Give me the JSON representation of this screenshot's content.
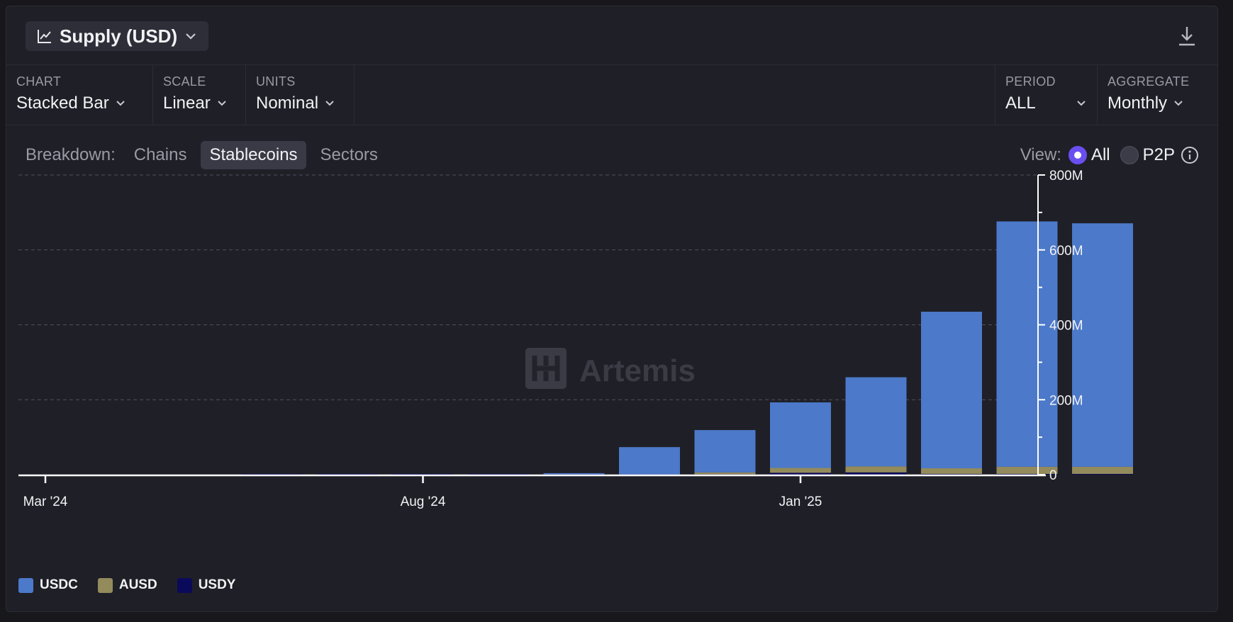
{
  "header": {
    "title": "Supply (USD)",
    "chart_icon": "line-chart-icon",
    "download_icon": "download-icon"
  },
  "controls": [
    {
      "label": "CHART",
      "value": "Stacked Bar"
    },
    {
      "label": "SCALE",
      "value": "Linear"
    },
    {
      "label": "UNITS",
      "value": "Nominal"
    },
    {
      "label": "PERIOD",
      "value": "ALL"
    },
    {
      "label": "AGGREGATE",
      "value": "Monthly"
    }
  ],
  "breakdown": {
    "label": "Breakdown:",
    "items": [
      "Chains",
      "Stablecoins",
      "Sectors"
    ],
    "active": "Stablecoins"
  },
  "view": {
    "label": "View:",
    "options": [
      "All",
      "P2P"
    ],
    "selected": "All"
  },
  "watermark": "Artemis",
  "colors": {
    "USDC": "#4c79c9",
    "AUSD": "#938b5c",
    "USDY": "#0b0a5a",
    "accent": "#6a4ff0"
  },
  "chart_data": {
    "type": "bar",
    "stacked": true,
    "categories": [
      "Mar '24",
      "Apr '24",
      "May '24",
      "Jun '24",
      "Jul '24",
      "Aug '24",
      "Sep '24",
      "Oct '24",
      "Nov '24",
      "Dec '24",
      "Jan '25",
      "Feb '25",
      "Mar '25",
      "Apr '25",
      "May '25"
    ],
    "x_tick_labels": [
      "Mar '24",
      "Aug '24",
      "Jan '25"
    ],
    "series": [
      {
        "name": "USDY",
        "values": [
          0,
          0,
          0,
          1,
          1,
          1,
          1,
          1,
          0.5,
          1,
          5,
          6,
          2,
          2,
          2
        ]
      },
      {
        "name": "AUSD",
        "values": [
          0,
          0,
          0,
          0,
          0,
          0,
          0,
          0,
          0,
          5,
          13,
          16,
          15,
          19,
          19
        ]
      },
      {
        "name": "USDC",
        "values": [
          0,
          0,
          0,
          0,
          0,
          0,
          0,
          3,
          73,
          113,
          175,
          238,
          418,
          655,
          650
        ]
      }
    ],
    "y_axis": {
      "ticks": [
        "0",
        "200M",
        "400M",
        "600M",
        "800M"
      ],
      "ylim": [
        0,
        800
      ],
      "unit": "M",
      "position": "right"
    },
    "grid": true,
    "legend_position": "bottom-left"
  }
}
